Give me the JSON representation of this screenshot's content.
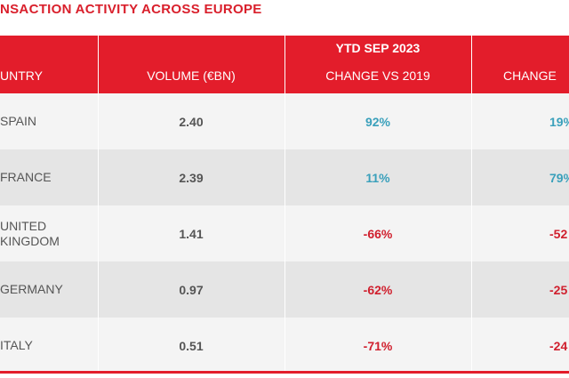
{
  "title": "NSACTION ACTIVITY ACROSS EUROPE",
  "header": {
    "group": "YTD SEP 2023",
    "columns": [
      "UNTRY",
      "VOLUME (€BN)",
      "CHANGE VS 2019",
      "CHANGE"
    ]
  },
  "table": {
    "rows": [
      [
        "SPAIN",
        "2.40",
        "92%",
        "19%"
      ],
      [
        "FRANCE",
        "2.39",
        "11%",
        "79%"
      ],
      [
        "UNITED KINGDOM",
        "1.41",
        "-66%",
        "-52"
      ],
      [
        "GERMANY",
        "0.97",
        "-62%",
        "-25"
      ],
      [
        "ITALY",
        "0.51",
        "-71%",
        "-24"
      ]
    ]
  }
}
